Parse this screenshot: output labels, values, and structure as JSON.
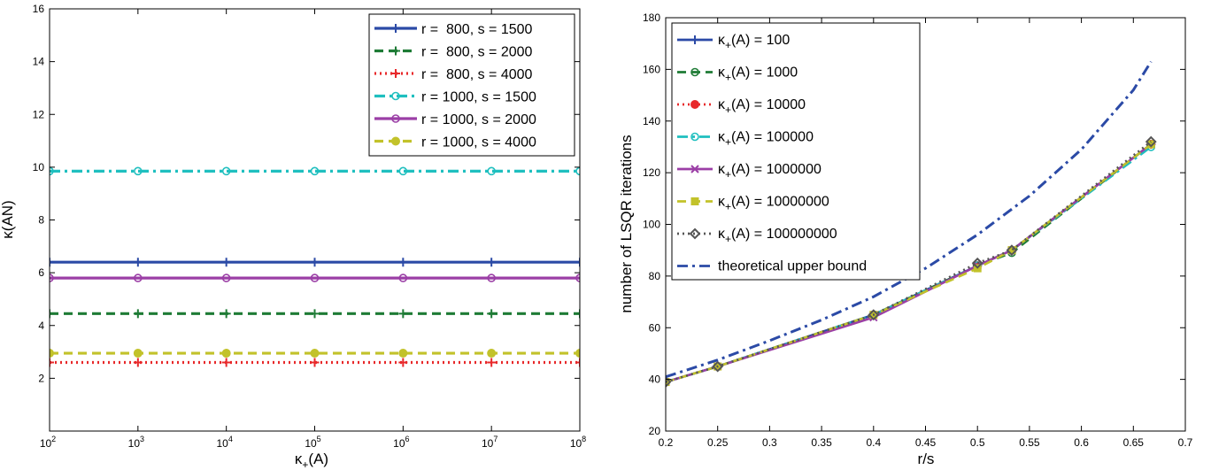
{
  "chart_data": [
    {
      "type": "line",
      "xscale": "log",
      "x": [
        100,
        1000,
        10000,
        100000,
        1000000,
        10000000,
        100000000
      ],
      "xlim": [
        100,
        100000000
      ],
      "ylim": [
        0,
        16
      ],
      "xticks": [
        2,
        3,
        4,
        5,
        6,
        7,
        8
      ],
      "yticks": [
        2,
        4,
        6,
        8,
        10,
        12,
        14,
        16
      ],
      "xlabel": "κ+(A)",
      "xlabel_parts": {
        "base": "κ",
        "sub": "+",
        "rest": "(A)"
      },
      "ylabel": "κ(AN)",
      "grid": false,
      "legend_position": "top-right",
      "series": [
        {
          "name": "r =  800, s = 1500",
          "color": "#2b4aa6",
          "style": "solid",
          "marker": "plus",
          "values": [
            6.4,
            6.4,
            6.4,
            6.4,
            6.4,
            6.4,
            6.4
          ]
        },
        {
          "name": "r =  800, s = 2000",
          "color": "#1e7b35",
          "style": "dashed",
          "marker": "plus",
          "values": [
            4.45,
            4.45,
            4.45,
            4.45,
            4.45,
            4.45,
            4.45
          ]
        },
        {
          "name": "r =  800, s = 4000",
          "color": "#e8292b",
          "style": "dotted",
          "marker": "plus",
          "values": [
            2.6,
            2.6,
            2.6,
            2.6,
            2.6,
            2.6,
            2.6
          ]
        },
        {
          "name": "r = 1000, s = 1500",
          "color": "#1fbfbf",
          "style": "dashdot",
          "marker": "circle",
          "values": [
            9.85,
            9.85,
            9.85,
            9.85,
            9.85,
            9.85,
            9.85
          ]
        },
        {
          "name": "r = 1000, s = 2000",
          "color": "#9b3fa6",
          "style": "solid",
          "marker": "circle",
          "values": [
            5.8,
            5.8,
            5.8,
            5.8,
            5.8,
            5.8,
            5.8
          ]
        },
        {
          "name": "r = 1000, s = 4000",
          "color": "#c2c22a",
          "style": "dashed",
          "marker": "dot",
          "values": [
            2.95,
            2.95,
            2.95,
            2.95,
            2.95,
            2.95,
            2.95
          ]
        }
      ]
    },
    {
      "type": "line",
      "xlim": [
        0.2,
        0.7
      ],
      "ylim": [
        20,
        180
      ],
      "xticks": [
        0.2,
        0.25,
        0.3,
        0.35,
        0.4,
        0.45,
        0.5,
        0.55,
        0.6,
        0.65,
        0.7
      ],
      "xtick_labels": [
        "0.2",
        "0.25",
        "0.3",
        "0.35",
        "0.4",
        "0.45",
        "0.5",
        "0.55",
        "0.6",
        "0.65",
        "0.7"
      ],
      "yticks": [
        20,
        40,
        60,
        80,
        100,
        120,
        140,
        160,
        180
      ],
      "xlabel": "r/s",
      "ylabel": "number of LSQR iterations",
      "grid": false,
      "legend_position": "top-left",
      "series": [
        {
          "name": "κ+(A) = 100",
          "legend_value": "100",
          "color": "#2b4aa6",
          "style": "solid",
          "marker": "plus",
          "x": [
            0.2,
            0.25,
            0.4,
            0.5,
            0.533,
            0.667
          ],
          "values": [
            39,
            45,
            65,
            84,
            90,
            131
          ]
        },
        {
          "name": "κ+(A) = 1000",
          "legend_value": "1000",
          "color": "#1e7b35",
          "style": "dashed",
          "marker": "circle",
          "x": [
            0.2,
            0.25,
            0.4,
            0.5,
            0.533,
            0.667
          ],
          "values": [
            39,
            45,
            65,
            84,
            89,
            131
          ]
        },
        {
          "name": "κ+(A) = 10000",
          "legend_value": "10000",
          "color": "#e8292b",
          "style": "dotted",
          "marker": "dot",
          "x": [
            0.2,
            0.25,
            0.4,
            0.5,
            0.533,
            0.667
          ],
          "values": [
            39,
            45,
            65,
            84,
            90,
            131
          ]
        },
        {
          "name": "κ+(A) = 100000",
          "legend_value": "100000",
          "color": "#1fbfbf",
          "style": "dashdot",
          "marker": "circle",
          "x": [
            0.2,
            0.25,
            0.4,
            0.5,
            0.533,
            0.667
          ],
          "values": [
            39,
            45,
            65,
            84,
            90,
            130
          ]
        },
        {
          "name": "κ+(A) = 1000000",
          "legend_value": "1000000",
          "color": "#9b3fa6",
          "style": "solid",
          "marker": "x",
          "x": [
            0.2,
            0.25,
            0.4,
            0.5,
            0.533,
            0.667
          ],
          "values": [
            39,
            45,
            64,
            84,
            90,
            131
          ]
        },
        {
          "name": "κ+(A) = 10000000",
          "legend_value": "10000000",
          "color": "#c2c22a",
          "style": "dashed",
          "marker": "square",
          "x": [
            0.2,
            0.25,
            0.4,
            0.5,
            0.533,
            0.667
          ],
          "values": [
            39,
            45,
            65,
            83,
            90,
            131
          ]
        },
        {
          "name": "κ+(A) = 100000000",
          "legend_value": "100000000",
          "color": "#555555",
          "style": "dotted",
          "marker": "diamond",
          "x": [
            0.2,
            0.25,
            0.4,
            0.5,
            0.533,
            0.667
          ],
          "values": [
            39,
            45,
            65,
            85,
            90,
            132
          ]
        },
        {
          "name": "theoretical upper bound",
          "color": "#2b4aa6",
          "style": "dashdot",
          "marker": "none",
          "x": [
            0.2,
            0.25,
            0.3,
            0.35,
            0.4,
            0.45,
            0.5,
            0.55,
            0.6,
            0.65,
            0.667
          ],
          "values": [
            41,
            47.5,
            55,
            63,
            72,
            83,
            96,
            111,
            129,
            152,
            163
          ]
        }
      ]
    }
  ]
}
